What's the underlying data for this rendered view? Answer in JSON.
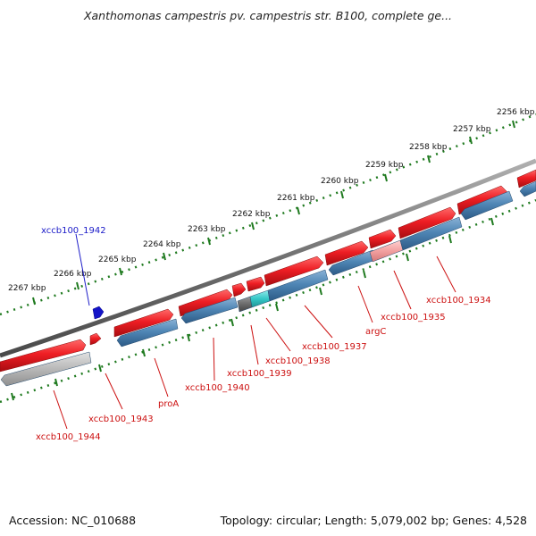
{
  "title": "Xanthomonas campestris pv. campestris str. B100, complete ge...",
  "footer": {
    "accession": "Accession: NC_010688",
    "summary": "Topology: circular; Length: 5,079,002 bp; Genes: 4,528"
  },
  "colors": {
    "forward_gene": "#e8141e",
    "reverse_gene": "#4f86b5",
    "highlight_cyan": "#35c7c7",
    "highlight_pink": "#f2a0a0",
    "gray_gene": "#b5b5b5",
    "dark_gene": "#6a6a6a",
    "backbone": "#7b7b7b",
    "tick": "#1f7a1f",
    "label_red": "#cc1010",
    "label_blue": "#1a1ac8"
  },
  "kbp_ticks": [
    "2256 kbp",
    "2257 kbp",
    "2258 kbp",
    "2259 kbp",
    "2260 kbp",
    "2261 kbp",
    "2262 kbp",
    "2263 kbp",
    "2264 kbp",
    "2265 kbp",
    "2266 kbp",
    "2267 kbp"
  ],
  "gene_labels": {
    "g1942": "xccb100_1942",
    "g1944": "xccb100_1944",
    "g1943": "xccb100_1943",
    "proA": "proA",
    "g1940": "xccb100_1940",
    "g1939": "xccb100_1939",
    "g1938": "xccb100_1938",
    "g1937": "xccb100_1937",
    "argC": "argC",
    "g1935": "xccb100_1935",
    "g1934": "xccb100_1934"
  }
}
